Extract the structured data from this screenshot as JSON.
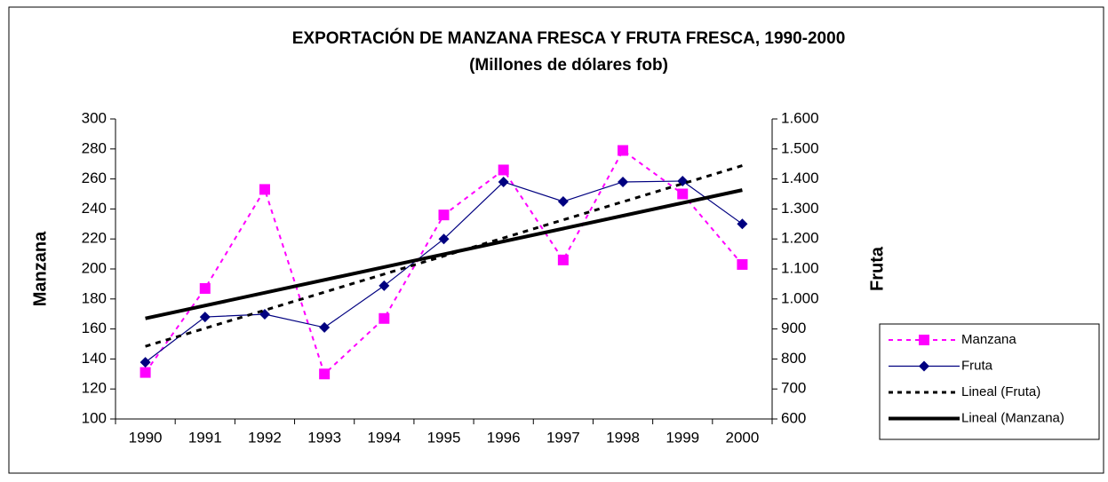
{
  "chart_data": {
    "type": "line",
    "title": "EXPORTACIÓN DE MANZANA FRESCA Y FRUTA FRESCA, 1990-2000",
    "subtitle": "(Millones de dólares fob)",
    "ylabel": "Manzana",
    "y2label": "Fruta",
    "categories": [
      "1990",
      "1991",
      "1992",
      "1993",
      "1994",
      "1995",
      "1996",
      "1997",
      "1998",
      "1999",
      "2000"
    ],
    "series": [
      {
        "name": "Manzana",
        "color": "#ff00ff",
        "dash": true,
        "marker": "square",
        "values": [
          131,
          187,
          253,
          130,
          167,
          236,
          266,
          206,
          279,
          250,
          203
        ]
      },
      {
        "name": "Fruta",
        "color": "#000080",
        "dash": false,
        "marker": "diamond",
        "axis": "y2",
        "values": [
          789,
          940,
          949,
          905,
          1044,
          1200,
          1390,
          1325,
          1390,
          1393,
          1250
        ]
      },
      {
        "name": "Lineal (Fruta)",
        "color": "#000000",
        "dash": true,
        "trend_of": 1,
        "axis": "y2"
      },
      {
        "name": "Lineal (Manzana)",
        "color": "#000000",
        "dash": false,
        "trend_of": 0
      }
    ],
    "ylim": [
      100,
      300
    ],
    "yticks": [
      100,
      120,
      140,
      160,
      180,
      200,
      220,
      240,
      260,
      280,
      300
    ],
    "y2lim": [
      600,
      1600
    ],
    "y2ticks": [
      600,
      700,
      800,
      900,
      {
        "value": 1000,
        "label": "1.000"
      },
      {
        "value": 1100,
        "label": "1.100"
      },
      {
        "value": 1200,
        "label": "1.200"
      },
      {
        "value": 1300,
        "label": "1.300"
      },
      {
        "value": 1400,
        "label": "1.400"
      },
      {
        "value": 1500,
        "label": "1.500"
      },
      {
        "value": 1600,
        "label": "1.600"
      }
    ],
    "legend": "right",
    "grid": false
  }
}
